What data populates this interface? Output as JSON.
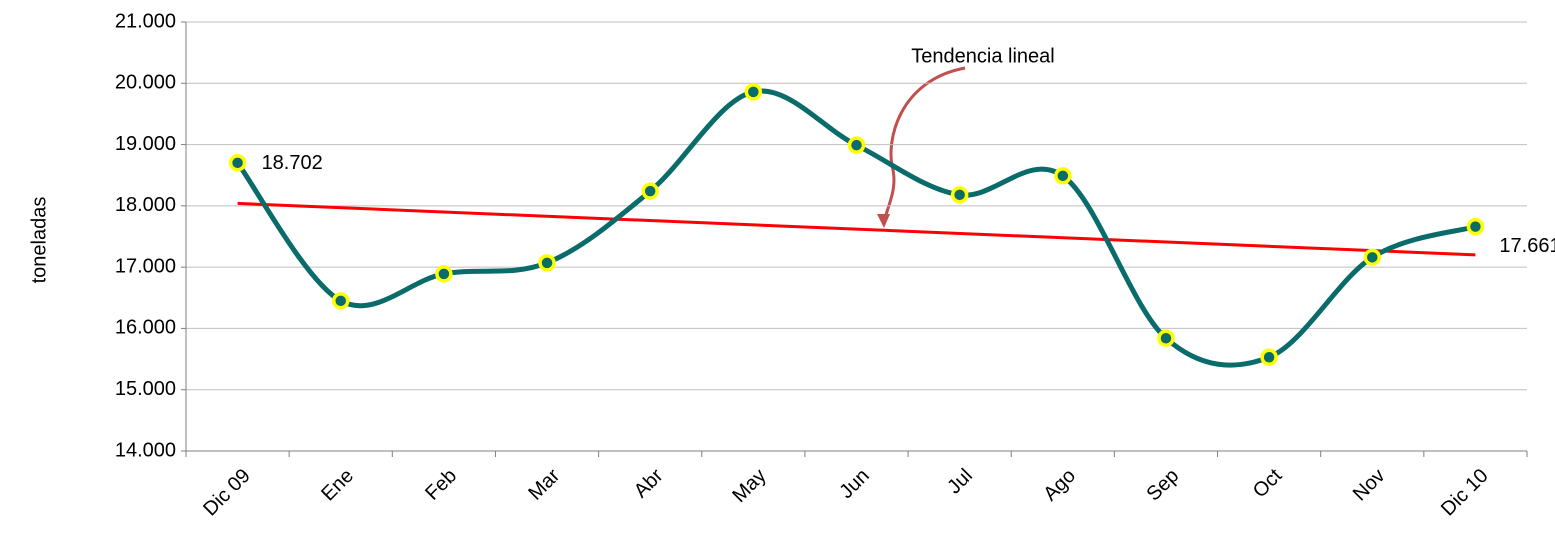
{
  "chart_data": {
    "type": "line",
    "y_label": "toneladas",
    "annotation": "Tendencia lineal",
    "categories": [
      "Dic 09",
      "Ene",
      "Feb",
      "Mar",
      "Abr",
      "May",
      "Jun",
      "Jul",
      "Ago",
      "Sep",
      "Oct",
      "Nov",
      "Dic 10"
    ],
    "series": [
      {
        "color": "#0a6b6b",
        "marker_color": "#ffff00",
        "values": [
          18702,
          16450,
          16890,
          17070,
          18240,
          19860,
          18990,
          18180,
          18490,
          15840,
          15530,
          17160,
          17661
        ],
        "value_labels": [
          "18.702",
          null,
          null,
          null,
          null,
          null,
          null,
          null,
          null,
          null,
          null,
          null,
          "17.661"
        ]
      }
    ],
    "trendline": {
      "start": 18040,
      "end": 17200,
      "color": "#ff0000"
    },
    "ylim": [
      14000,
      21000
    ],
    "yticks": [
      {
        "value": 14000,
        "label": "14.000"
      },
      {
        "value": 15000,
        "label": "15.000"
      },
      {
        "value": 16000,
        "label": "16.000"
      },
      {
        "value": 17000,
        "label": "17.000"
      },
      {
        "value": 18000,
        "label": "18.000"
      },
      {
        "value": 19000,
        "label": "19.000"
      },
      {
        "value": 20000,
        "label": "20.000"
      },
      {
        "value": 21000,
        "label": "21.000"
      }
    ],
    "grid": true
  }
}
